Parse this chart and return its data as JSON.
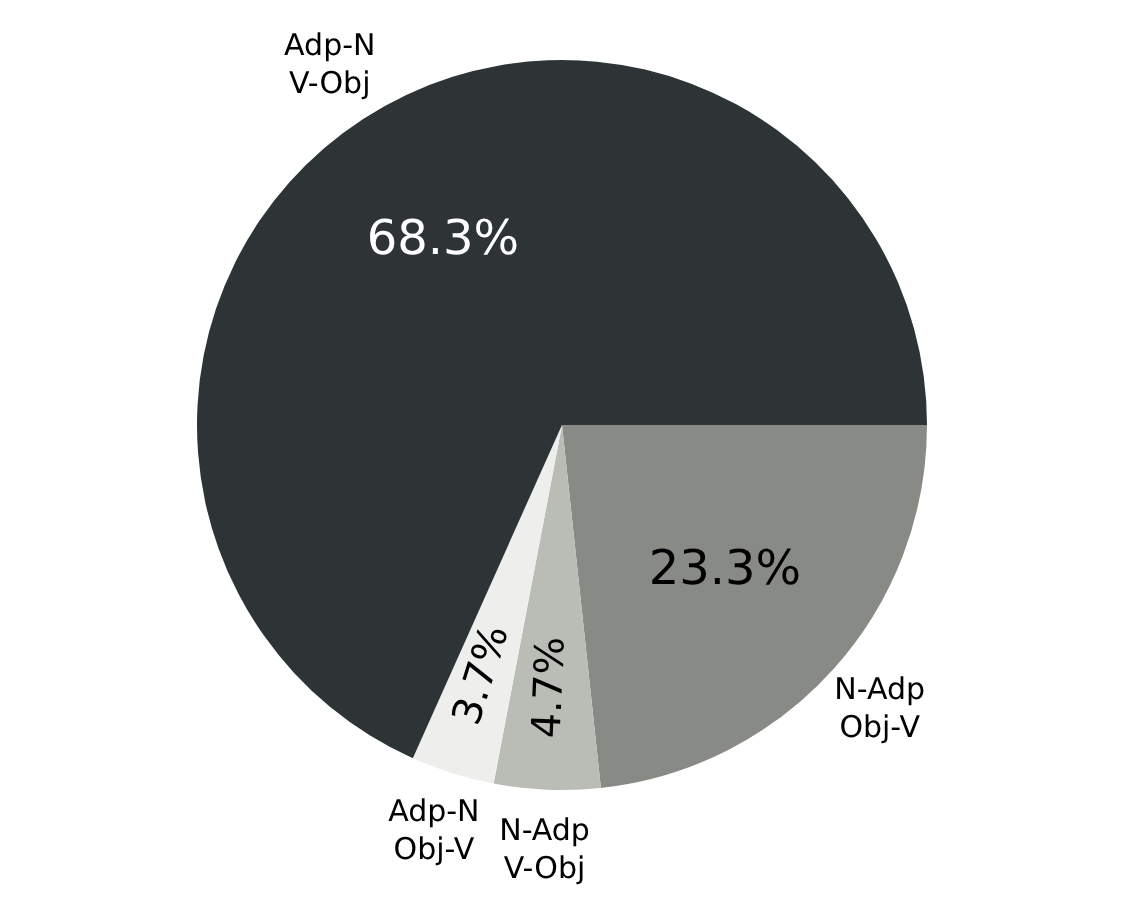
{
  "chart_data": {
    "type": "pie",
    "categories": [
      "N-Adp\nObj-V",
      "N-Adp\nV-Obj",
      "Adp-N\nObj-V",
      "Adp-N\nV-Obj"
    ],
    "values": [
      23.3,
      4.7,
      3.7,
      68.3
    ],
    "colors": [
      "#888a85",
      "#babdb6",
      "#eeeeec",
      "#2e3436"
    ],
    "value_labels": [
      "23.3%",
      "4.7%",
      "3.7%",
      "68.3%"
    ],
    "legend": false
  }
}
